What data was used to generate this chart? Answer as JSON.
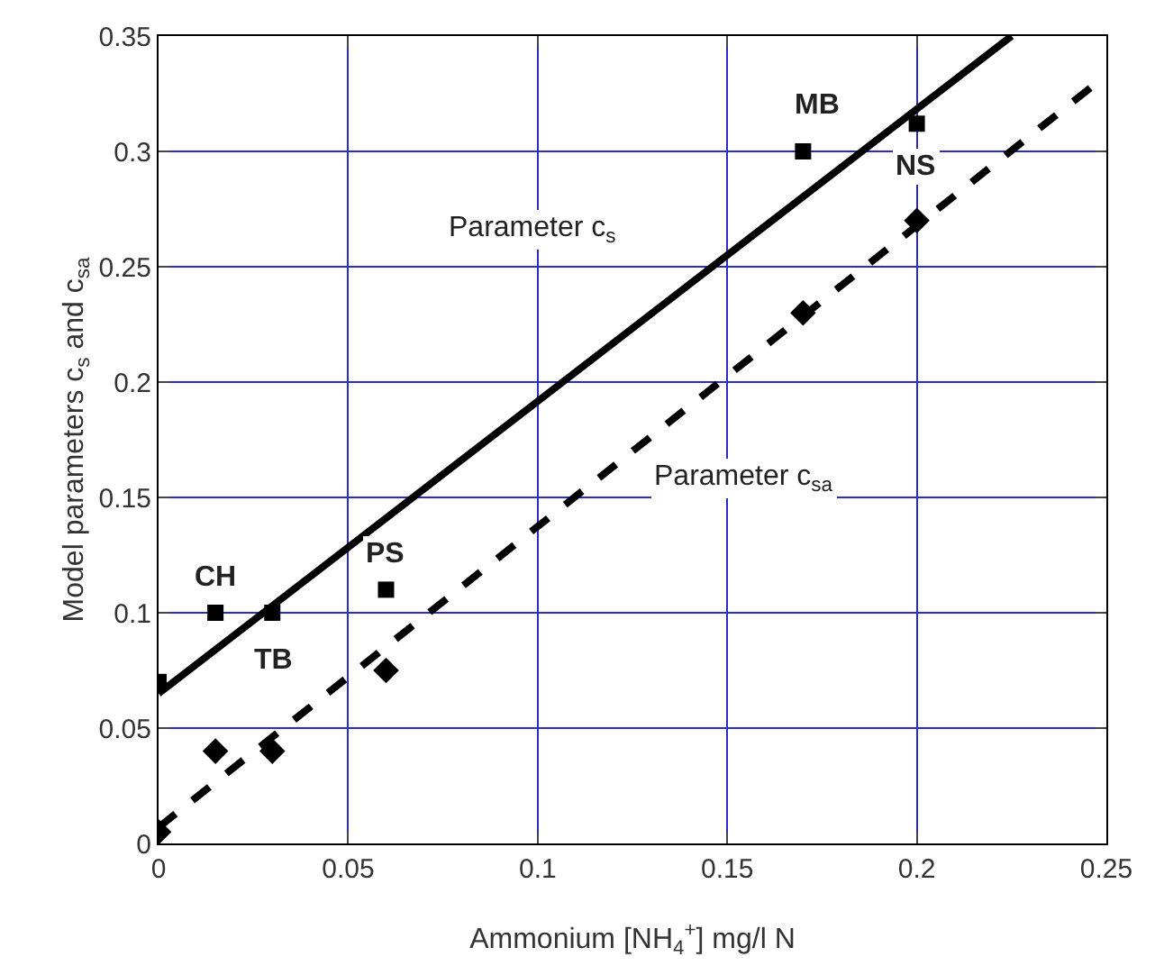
{
  "chart_data": {
    "type": "scatter",
    "xlabel": "Ammonium [NH$_{4}$$^{+}$] mg/l N",
    "ylabel": "Model parameters c$_{s}$ and c$_{sa}$",
    "xlim": [
      0,
      0.25
    ],
    "xticks": [
      0,
      0.05,
      0.1,
      0.15,
      0.2,
      0.25
    ],
    "ylim": [
      0,
      0.35
    ],
    "yticks": [
      0,
      0.05,
      0.1,
      0.15,
      0.2,
      0.25,
      0.3,
      0.35
    ],
    "grid": true,
    "series": [
      {
        "type": "scatter",
        "color": "#000000",
        "marker": "square",
        "x": [
          0,
          0.015,
          0.03,
          0.06,
          0.17,
          0.2
        ],
        "values": [
          0.07,
          0.1,
          0.1,
          0.11,
          0.3,
          0.312
        ]
      },
      {
        "type": "scatter",
        "color": "#000000",
        "marker": "diamond",
        "x": [
          0,
          0.015,
          0.03,
          0.06,
          0.17,
          0.2
        ],
        "values": [
          0.005,
          0.04,
          0.04,
          0.075,
          0.23,
          0.27
        ]
      },
      {
        "type": "line",
        "color": "#000000",
        "marker": "none",
        "line_style": "solid",
        "x": [
          0,
          0.225
        ],
        "values": [
          0.065,
          0.35
        ]
      },
      {
        "type": "line",
        "color": "#000000",
        "marker": "none",
        "line_style": "dashed",
        "x": [
          0,
          0.25
        ],
        "values": [
          0.007,
          0.333
        ]
      }
    ],
    "annotations": [
      {
        "text": "CH",
        "x": 0.015,
        "y": 0.1
      },
      {
        "text": "TB",
        "x": 0.03,
        "y": 0.1
      },
      {
        "text": "PS",
        "x": 0.06,
        "y": 0.11
      },
      {
        "text": "MB",
        "x": 0.17,
        "y": 0.3
      },
      {
        "text": "NS",
        "x": 0.2,
        "y": 0.312
      },
      {
        "text": "Parameter c$_{s}$",
        "x": 0.13,
        "y": 0.23
      },
      "Parameter c$_{sa}$"
    ]
  }
}
